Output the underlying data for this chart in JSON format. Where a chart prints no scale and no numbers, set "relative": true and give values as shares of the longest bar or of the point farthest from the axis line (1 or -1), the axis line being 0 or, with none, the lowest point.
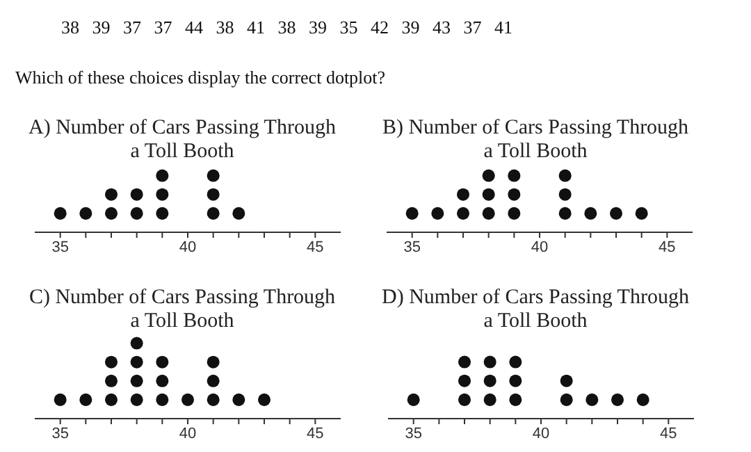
{
  "chart_data": [
    {
      "type": "other",
      "annotations": [
        "38 39 37 37 44 38 41 38 39 35 42 39 43 37 41",
        "Which of these choices display the correct dotplot?"
      ]
    },
    {
      "type": "scatter",
      "title": "A) Number of Cars Passing Through a Toll Booth",
      "color": "#111111",
      "marker": "circle",
      "grid": false,
      "relative": true,
      "xlim": [
        34,
        46
      ],
      "xticks": [
        35,
        {
          "value": 36,
          "label": null
        },
        {
          "value": 37,
          "label": null
        },
        {
          "value": 38,
          "label": null
        },
        {
          "value": 39,
          "label": null
        },
        40,
        {
          "value": 41,
          "label": null
        },
        {
          "value": 42,
          "label": null
        },
        {
          "value": 43,
          "label": null
        },
        {
          "value": 44,
          "label": null
        },
        45
      ],
      "x": [
        35,
        36,
        37,
        37,
        38,
        38,
        39,
        39,
        39,
        41,
        41,
        41,
        42
      ],
      "values": [
        0.333,
        0.333,
        0.333,
        0.667,
        0.333,
        0.667,
        0.333,
        0.667,
        1,
        0.333,
        0.667,
        1,
        0.333
      ]
    },
    {
      "type": "scatter",
      "title": "B) Number of Cars Passing Through a Toll Booth",
      "color": "#111111",
      "marker": "circle",
      "grid": false,
      "relative": true,
      "xlim": [
        34,
        46
      ],
      "xticks": [
        35,
        {
          "value": 36,
          "label": null
        },
        {
          "value": 37,
          "label": null
        },
        {
          "value": 38,
          "label": null
        },
        {
          "value": 39,
          "label": null
        },
        40,
        {
          "value": 41,
          "label": null
        },
        {
          "value": 42,
          "label": null
        },
        {
          "value": 43,
          "label": null
        },
        {
          "value": 44,
          "label": null
        },
        45
      ],
      "x": [
        35,
        36,
        37,
        37,
        38,
        38,
        38,
        39,
        39,
        39,
        41,
        41,
        41,
        42,
        43,
        44
      ],
      "values": [
        0.333,
        0.333,
        0.333,
        0.667,
        0.333,
        0.667,
        1,
        0.333,
        0.667,
        1,
        0.333,
        0.667,
        1,
        0.333,
        0.333,
        0.333
      ]
    },
    {
      "type": "scatter",
      "title": "C) Number of Cars Passing Through a Toll Booth",
      "color": "#111111",
      "marker": "circle",
      "grid": false,
      "relative": true,
      "xlim": [
        34,
        46
      ],
      "xticks": [
        35,
        {
          "value": 36,
          "label": null
        },
        {
          "value": 37,
          "label": null
        },
        {
          "value": 38,
          "label": null
        },
        {
          "value": 39,
          "label": null
        },
        40,
        {
          "value": 41,
          "label": null
        },
        {
          "value": 42,
          "label": null
        },
        {
          "value": 43,
          "label": null
        },
        {
          "value": 44,
          "label": null
        },
        45
      ],
      "x": [
        35,
        36,
        37,
        37,
        37,
        38,
        38,
        38,
        38,
        39,
        39,
        39,
        40,
        41,
        41,
        41,
        42,
        43
      ],
      "values": [
        0.25,
        0.25,
        0.25,
        0.5,
        0.75,
        0.25,
        0.5,
        0.75,
        1,
        0.25,
        0.5,
        0.75,
        0.25,
        0.25,
        0.5,
        0.75,
        0.25,
        0.25
      ]
    },
    {
      "type": "scatter",
      "title": "D) Number of Cars Passing Through a Toll Booth",
      "color": "#111111",
      "marker": "circle",
      "grid": false,
      "relative": true,
      "xlim": [
        34,
        46
      ],
      "xticks": [
        35,
        {
          "value": 36,
          "label": null
        },
        {
          "value": 37,
          "label": null
        },
        {
          "value": 38,
          "label": null
        },
        {
          "value": 39,
          "label": null
        },
        40,
        {
          "value": 41,
          "label": null
        },
        {
          "value": 42,
          "label": null
        },
        {
          "value": 43,
          "label": null
        },
        {
          "value": 44,
          "label": null
        },
        45
      ],
      "x": [
        35,
        37,
        37,
        37,
        38,
        38,
        38,
        39,
        39,
        39,
        41,
        41,
        42,
        43,
        44
      ],
      "values": [
        0.333,
        0.333,
        0.667,
        1,
        0.333,
        0.667,
        1,
        0.333,
        0.667,
        1,
        0.333,
        0.667,
        0.333,
        0.333,
        0.333
      ]
    }
  ]
}
